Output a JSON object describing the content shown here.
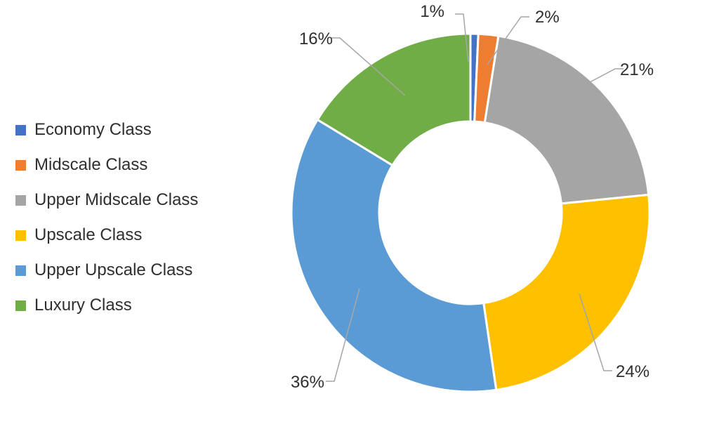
{
  "chart_data": {
    "type": "pie",
    "subtype": "donut",
    "title": "",
    "legend_position": "left",
    "categories": [
      "Economy Class",
      "Midscale Class",
      "Upper Midscale Class",
      "Upscale Class",
      "Upper Upscale Class",
      "Luxury Class"
    ],
    "values": [
      0.7,
      1.8,
      20.9,
      24.3,
      36.0,
      16.3
    ],
    "data_labels": [
      "1%",
      "2%",
      "21%",
      "24%",
      "36%",
      "16%"
    ],
    "colors": [
      "#4472c4",
      "#ed7d31",
      "#a5a5a5",
      "#ffc000",
      "#5b9bd5",
      "#70ad47"
    ]
  }
}
